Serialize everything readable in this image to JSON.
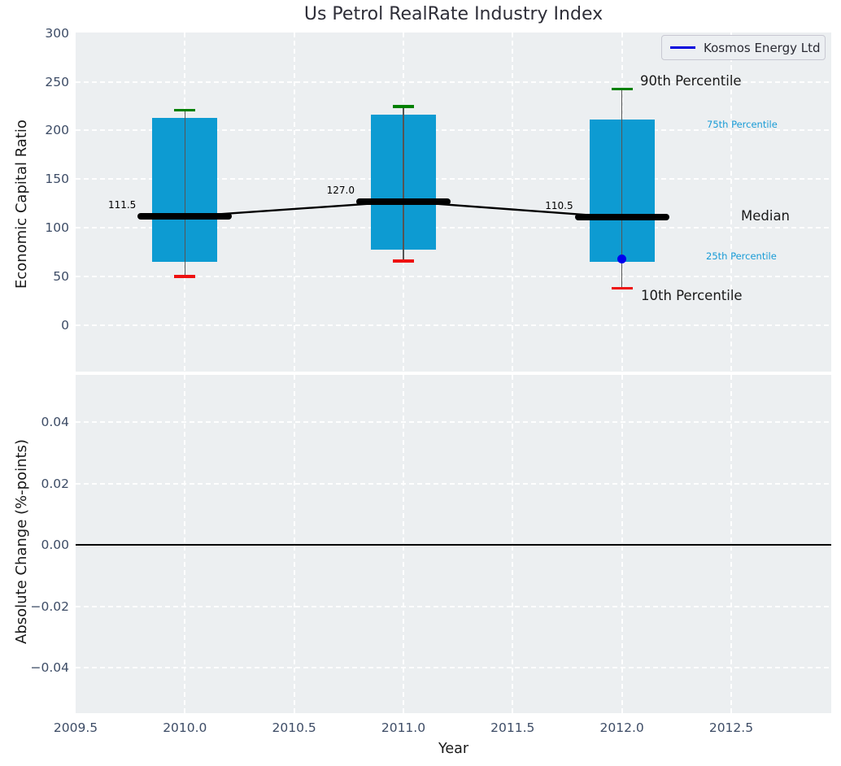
{
  "title": "Us Petrol RealRate Industry Index",
  "legend": {
    "label": "Kosmos Energy Ltd"
  },
  "top_plot": {
    "ylabel": "Economic Capital Ratio",
    "yticks": [
      {
        "label": "300",
        "value": 300
      },
      {
        "label": "250",
        "value": 250
      },
      {
        "label": "200",
        "value": 200
      },
      {
        "label": "150",
        "value": 150
      },
      {
        "label": "100",
        "value": 100
      },
      {
        "label": "50",
        "value": 50
      },
      {
        "label": "0",
        "value": 0
      }
    ]
  },
  "bottom_plot": {
    "ylabel": "Absolute Change (%-points)",
    "yticks": [
      {
        "label": "0.04",
        "value": 0.04
      },
      {
        "label": "0.02",
        "value": 0.02
      },
      {
        "label": "0.00",
        "value": 0
      },
      {
        "label": "−0.02",
        "value": -0.02
      },
      {
        "label": "−0.04",
        "value": -0.04
      }
    ]
  },
  "xaxis": {
    "label": "Year",
    "ticks": [
      {
        "label": "2009.5",
        "value": 2009.5
      },
      {
        "label": "2010.0",
        "value": 2010.0
      },
      {
        "label": "2010.5",
        "value": 2010.5
      },
      {
        "label": "2011.0",
        "value": 2011.0
      },
      {
        "label": "2011.5",
        "value": 2011.5
      },
      {
        "label": "2012.0",
        "value": 2012.0
      },
      {
        "label": "2012.5",
        "value": 2012.5
      }
    ]
  },
  "annotations": {
    "p90": "90th Percentile",
    "p75": "75th Percentile",
    "median": "Median",
    "p25": "25th Percentile",
    "p10": "10th Percentile"
  },
  "colors": {
    "box": "#0D9BD2",
    "p90_cap": "#008000",
    "p10_cap": "#EE1111",
    "median": "#000000",
    "company": "#0000EE",
    "legend_line": "#0000DD",
    "cyan_label": "#189BD6",
    "plot_bg": "#ECEFF1",
    "zero_line": "#000000"
  },
  "chart_data": {
    "type": "boxplot",
    "title": "Us Petrol RealRate Industry Index",
    "xlabel": "Year",
    "ylabel_top": "Economic Capital Ratio",
    "ylabel_bottom": "Absolute Change (%-points)",
    "xlim": [
      2009.5,
      2012.96
    ],
    "ylim_top": [
      -48,
      301
    ],
    "ylim_bottom": [
      -0.055,
      0.055
    ],
    "grid": true,
    "legend_entries": [
      "Kosmos Energy Ltd"
    ],
    "legend_position": "upper right",
    "boxes": [
      {
        "year": 2010,
        "p10": 50,
        "p25": 65,
        "median": 111.5,
        "p75": 213,
        "p90": 221,
        "median_label": "111.5"
      },
      {
        "year": 2011,
        "p10": 66,
        "p25": 77,
        "median": 127.0,
        "p75": 216,
        "p90": 225,
        "median_label": "127.0"
      },
      {
        "year": 2012,
        "p10": 38,
        "p25": 65,
        "median": 110.5,
        "p75": 211,
        "p90": 243,
        "median_label": "110.5"
      }
    ],
    "median_line": {
      "x": [
        2010,
        2011,
        2012
      ],
      "y": [
        111.5,
        127.0,
        110.5
      ]
    },
    "company_point": {
      "name": "Kosmos Energy Ltd",
      "year": 2012,
      "value": 68
    },
    "bottom_series": []
  }
}
